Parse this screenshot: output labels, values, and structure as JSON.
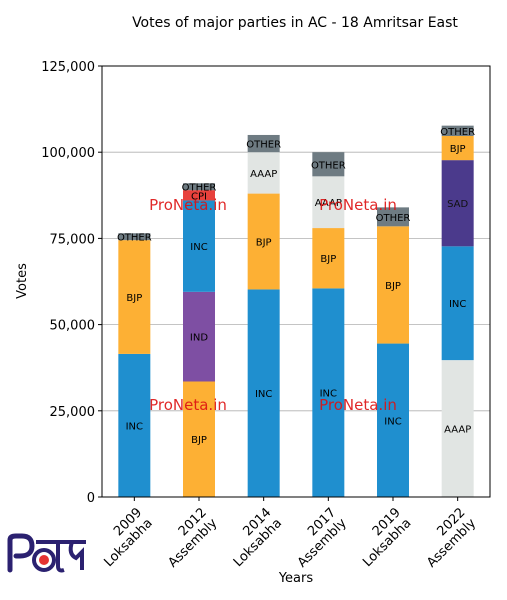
{
  "chart_data": {
    "type": "bar",
    "stacked": true,
    "title": "Votes of major parties in AC - 18 Amritsar East",
    "xlabel": "Years",
    "ylabel": "Votes",
    "ylim": [
      0,
      125000
    ],
    "yticks": [
      0,
      25000,
      50000,
      75000,
      100000,
      125000
    ],
    "ytick_labels": [
      "0",
      "25,000",
      "50,000",
      "75,000",
      "100,000",
      "125,000"
    ],
    "grid": "horizontal",
    "categories": [
      "2009\nLoksabha",
      "2012\nAssembly",
      "2014\nLoksabha",
      "2017\nAssembly",
      "2019\nLoksabha",
      "2022\nAssembly"
    ],
    "stacks": [
      [
        {
          "party": "INC",
          "value": 41500,
          "color": "#1f8fcf"
        },
        {
          "party": "BJP",
          "value": 33000,
          "color": "#fdb034"
        },
        {
          "party": "OTHER",
          "value": 2000,
          "color": "#6e7b82"
        }
      ],
      [
        {
          "party": "BJP",
          "value": 33500,
          "color": "#fdb034"
        },
        {
          "party": "IND",
          "value": 26000,
          "color": "#7e4fa3"
        },
        {
          "party": "INC",
          "value": 26500,
          "color": "#1f8fcf"
        },
        {
          "party": "CPI",
          "value": 3000,
          "color": "#e8413c"
        },
        {
          "party": "OTHER",
          "value": 2000,
          "color": "#6e7b82"
        }
      ],
      [
        {
          "party": "INC",
          "value": 60200,
          "color": "#1f8fcf"
        },
        {
          "party": "BJP",
          "value": 27800,
          "color": "#fdb034"
        },
        {
          "party": "AAAP",
          "value": 12000,
          "color": "#e1e5e3"
        },
        {
          "party": "OTHER",
          "value": 5000,
          "color": "#6e7b82"
        }
      ],
      [
        {
          "party": "INC",
          "value": 60500,
          "color": "#1f8fcf"
        },
        {
          "party": "BJP",
          "value": 17500,
          "color": "#fdb034"
        },
        {
          "party": "AAAP",
          "value": 15000,
          "color": "#e1e5e3"
        },
        {
          "party": "OTHER",
          "value": 7000,
          "color": "#6e7b82"
        }
      ],
      [
        {
          "party": "INC",
          "value": 44500,
          "color": "#1f8fcf"
        },
        {
          "party": "BJP",
          "value": 34000,
          "color": "#fdb034"
        },
        {
          "party": "OTHER",
          "value": 5500,
          "color": "#6e7b82"
        }
      ],
      [
        {
          "party": "AAAP",
          "value": 39700,
          "color": "#e1e5e3"
        },
        {
          "party": "INC",
          "value": 33000,
          "color": "#1f8fcf"
        },
        {
          "party": "SAD",
          "value": 25000,
          "color": "#4b3a8c"
        },
        {
          "party": "BJP",
          "value": 7000,
          "color": "#fdb034"
        },
        {
          "party": "OTHER",
          "value": 3000,
          "color": "#6e7b82"
        }
      ]
    ],
    "watermark": "ProNeta.in",
    "watermark_color": "#dd1111"
  },
  "logo_alt": "ProNeta"
}
